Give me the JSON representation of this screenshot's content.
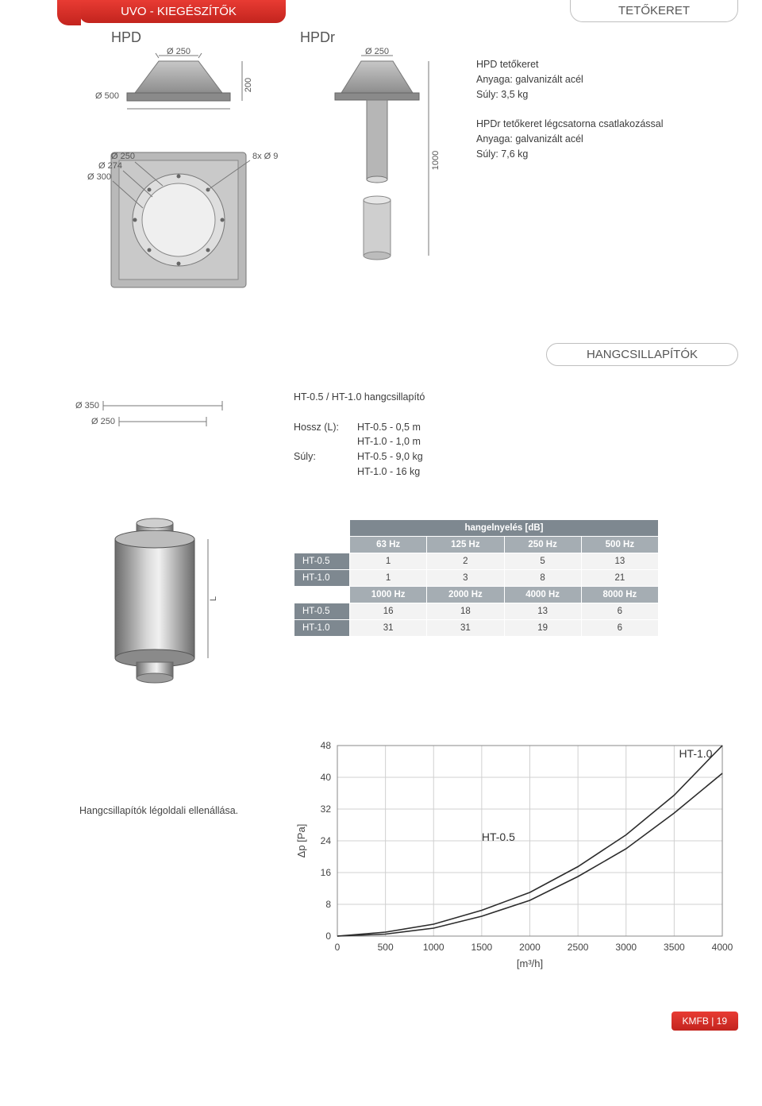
{
  "header": {
    "red_banner": "UVO - KIEGÉSZÍTŐK",
    "grey_banner": "TETŐKERET"
  },
  "variants": {
    "hpd": "HPD",
    "hpdr": "HPDr"
  },
  "hpd_dims": {
    "d250": "Ø 250",
    "d500": "Ø 500",
    "d274": "Ø 274",
    "d300": "Ø 300",
    "d250_inner": "Ø 250",
    "h200": "200",
    "holes": "8x Ø 9"
  },
  "hpdr_dims": {
    "d250": "Ø 250",
    "h1000": "1000"
  },
  "hpd_text": {
    "title": "HPD tetőkeret",
    "mat_label": "Anyaga:",
    "mat_val": "galvanizált acél",
    "wt_label": "Súly:",
    "wt_val": "3,5 kg"
  },
  "hpdr_text": {
    "title": "HPDr tetőkeret légcsatorna csatlakozással",
    "mat_label": "Anyaga:",
    "mat_val": "galvanizált acél",
    "wt_label": "Súly:",
    "wt_val": "7,6 kg"
  },
  "silencer_section": {
    "banner": "HANGCSILLAPÍTÓK"
  },
  "silencer_dims": {
    "d350": "Ø 350",
    "d250": "Ø 250",
    "L": "L"
  },
  "silencer_info": {
    "title": "HT-0.5 / HT-1.0 hangcsillapító",
    "len_label": "Hossz (L):",
    "len_1": "HT-0.5 - 0,5 m",
    "len_2": "HT-1.0 - 1,0 m",
    "wt_label": "Súly:",
    "wt_1": "HT-0.5 - 9,0 kg",
    "wt_2": "HT-1.0 - 16 kg"
  },
  "atten_table": {
    "header": "hangelnyelés [dB]",
    "freqs_top": [
      "63 Hz",
      "125 Hz",
      "250 Hz",
      "500 Hz"
    ],
    "freqs_bot": [
      "1000 Hz",
      "2000 Hz",
      "4000 Hz",
      "8000 Hz"
    ],
    "rows_top": [
      {
        "label": "HT-0.5",
        "vals": [
          "1",
          "2",
          "5",
          "13"
        ]
      },
      {
        "label": "HT-1.0",
        "vals": [
          "1",
          "3",
          "8",
          "21"
        ]
      }
    ],
    "rows_bot": [
      {
        "label": "HT-0.5",
        "vals": [
          "16",
          "18",
          "13",
          "6"
        ]
      },
      {
        "label": "HT-1.0",
        "vals": [
          "31",
          "31",
          "19",
          "6"
        ]
      }
    ],
    "colors": {
      "hdr1_bg": "#7e8890",
      "hdr2_bg": "#a5adb3",
      "rowlabel_bg": "#7e8890",
      "cell_bg": "#f3f3f3",
      "text_light": "#ffffff",
      "text_dark": "#444444"
    }
  },
  "chart": {
    "caption": "Hangcsillapítók légoldali ellenállása.",
    "type": "line",
    "xlabel": "[m³/h]",
    "ylabel": "Δp [Pa]",
    "label_fontsize": 13,
    "tick_fontsize": 12,
    "xlim": [
      0,
      4000
    ],
    "xtick_step": 500,
    "ylim": [
      0,
      48
    ],
    "ytick_step": 8,
    "background_color": "#ffffff",
    "grid_color": "#d0d0d0",
    "border_color": "#888888",
    "line_color": "#2c2c2c",
    "line_width": 1.6,
    "series": [
      {
        "name": "HT-0.5",
        "label_x": 1500,
        "label_y": 24,
        "points": [
          [
            0,
            0
          ],
          [
            500,
            0.5
          ],
          [
            1000,
            2
          ],
          [
            1500,
            5
          ],
          [
            2000,
            9
          ],
          [
            2500,
            15
          ],
          [
            3000,
            22
          ],
          [
            3500,
            31
          ],
          [
            4000,
            41
          ]
        ]
      },
      {
        "name": "HT-1.0",
        "label_x": 3550,
        "label_y": 45,
        "points": [
          [
            0,
            0
          ],
          [
            500,
            1
          ],
          [
            1000,
            3
          ],
          [
            1500,
            6.5
          ],
          [
            2000,
            11
          ],
          [
            2500,
            17.5
          ],
          [
            3000,
            25.5
          ],
          [
            3500,
            35.5
          ],
          [
            4000,
            48
          ]
        ]
      }
    ]
  },
  "footer": {
    "text": "KMFB | 19"
  }
}
